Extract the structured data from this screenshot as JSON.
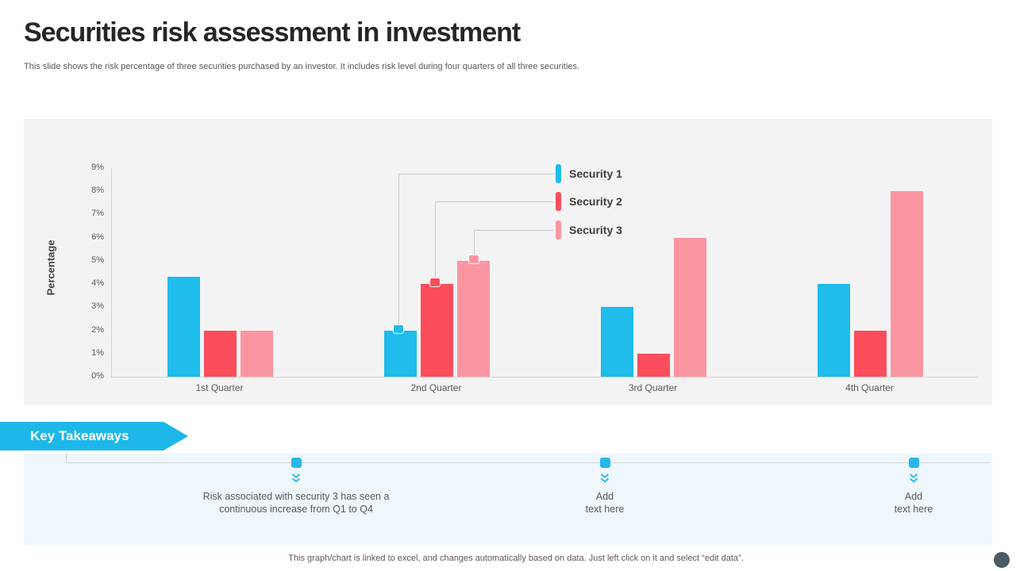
{
  "header": {
    "title": "Securities risk assessment in investment",
    "subtitle": "This slide shows the risk percentage of three securities purchased by an investor. It includes risk level during four quarters of all three securities."
  },
  "chart_data": {
    "type": "bar",
    "title": "",
    "xlabel": "",
    "ylabel": "Percentage",
    "ylim": [
      0,
      9
    ],
    "grid": false,
    "legend_position": "top-right with callout lines to 2nd Quarter bars",
    "categories": [
      "1st Quarter",
      "2nd Quarter",
      "3rd Quarter",
      "4th Quarter"
    ],
    "ytick_labels": [
      "0%",
      "1%",
      "2%",
      "3%",
      "4%",
      "5%",
      "6%",
      "7%",
      "8%",
      "9%"
    ],
    "series": [
      {
        "name": "Security 1",
        "color": "#1fbcec",
        "values": [
          4.3,
          2,
          3,
          4
        ]
      },
      {
        "name": "Security 2",
        "color": "#fb4d5c",
        "values": [
          2,
          4,
          1,
          2
        ]
      },
      {
        "name": "Security 3",
        "color": "#fb96a1",
        "values": [
          2,
          5,
          6,
          8
        ]
      }
    ]
  },
  "palette": {
    "accent_cyan": "#1db7ea",
    "series1_cyan": "#1fbcec",
    "series2_red": "#fb4d5c",
    "series3_pink": "#fb96a1",
    "panel_bg": "#f3f3f4",
    "band_bg": "#edf7fc"
  },
  "takeaways": {
    "banner_label": "Key Takeaways",
    "items": [
      {
        "lines": [
          "Risk associated with security 3 has seen a",
          "continuous increase from Q1 to Q4"
        ]
      },
      {
        "lines": [
          "Add",
          "text here"
        ]
      },
      {
        "lines": [
          "Add",
          "text here"
        ]
      }
    ]
  },
  "footer": {
    "note": "This graph/chart is linked to excel, and changes automatically based on data. Just left click on it and select “edit data”."
  }
}
